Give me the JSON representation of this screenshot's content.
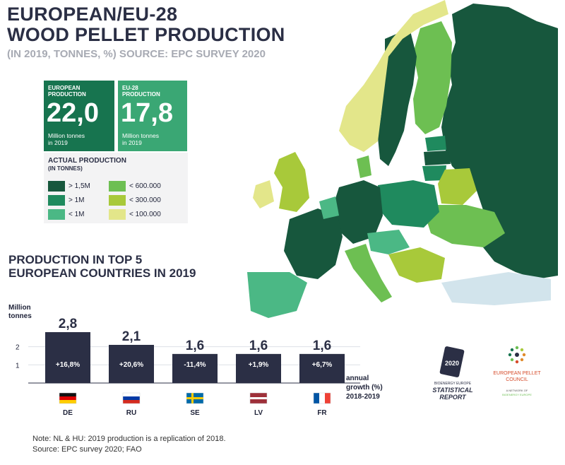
{
  "header": {
    "title_line1": "EUROPEAN/EU-28",
    "title_line2": "WOOD PELLET PRODUCTION",
    "subtitle": "(IN 2019, TONNES, %) SOURCE: EPC SURVEY 2020"
  },
  "stats": {
    "european": {
      "label_line1": "EUROPEAN",
      "label_line2": "PRODUCTION",
      "value": "22,0",
      "unit_line1": "Million tonnes",
      "unit_line2": "in 2019"
    },
    "eu28": {
      "label_line1": "EU-28",
      "label_line2": "PRODUCTION",
      "value": "17,8",
      "unit_line1": "Million tonnes",
      "unit_line2": "in 2019"
    }
  },
  "legend": {
    "title_line1": "ACTUAL PRODUCTION",
    "title_line2": "(IN TONNES)",
    "items": [
      {
        "label": "> 1,5M",
        "color": "#17573d"
      },
      {
        "label": "> 1M",
        "color": "#1f8a5e"
      },
      {
        "label": "< 1M",
        "color": "#4bb885"
      },
      {
        "label": "< 600.000",
        "color": "#6dbf52"
      },
      {
        "label": "< 300.000",
        "color": "#a8c93a"
      },
      {
        "label": "< 100.000",
        "color": "#e3e68a"
      }
    ]
  },
  "bars_section": {
    "title_line1": "PRODUCTION IN TOP 5",
    "title_line2": "EUROPEAN COUNTRIES IN 2019"
  },
  "chart_data": {
    "type": "bar",
    "categories": [
      "DE",
      "RU",
      "SE",
      "LV",
      "FR"
    ],
    "values": [
      2.8,
      2.1,
      1.6,
      1.6,
      1.6
    ],
    "value_labels": [
      "2,8",
      "2,1",
      "1,6",
      "1,6",
      "1,6"
    ],
    "growth_labels": [
      "+16,8%",
      "+20,6%",
      "-11,4%",
      "+1,9%",
      "+6,7%"
    ],
    "ylabel_line1": "Million",
    "ylabel_line2": "tonnes",
    "yticks": [
      1,
      2
    ],
    "ylim": [
      0,
      2.8
    ],
    "growth_caption_line1": "annual",
    "growth_caption_line2": "growth (%)",
    "growth_caption_line3": "2018-2019",
    "bar_color": "#2b2f45"
  },
  "notes": {
    "line1": "Note: NL & HU: 2019 production is a replication of 2018.",
    "line2": "Source: EPC survey 2020; FAO"
  },
  "logos": {
    "bioenergy_line1": "BIOENERGY EUROPE",
    "bioenergy_line2": "STATISTICAL",
    "bioenergy_line3": "REPORT",
    "bioenergy_badge": "2020",
    "epc_line1": "EUROPEAN PELLET",
    "epc_line2": "COUNCIL",
    "epc_line3": "A NETWORK OF",
    "epc_line4": "BIOENERGY EUROPE"
  }
}
